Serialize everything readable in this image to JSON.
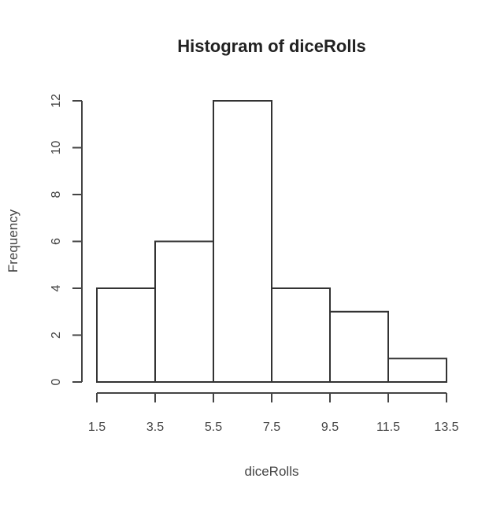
{
  "chart_data": {
    "type": "bar",
    "title": "Histogram of diceRolls",
    "xlabel": "diceRolls",
    "ylabel": "Frequency",
    "bins": [
      {
        "start": 1.5,
        "end": 3.5,
        "count": 4
      },
      {
        "start": 3.5,
        "end": 5.5,
        "count": 6
      },
      {
        "start": 5.5,
        "end": 7.5,
        "count": 12
      },
      {
        "start": 7.5,
        "end": 9.5,
        "count": 4
      },
      {
        "start": 9.5,
        "end": 11.5,
        "count": 3
      },
      {
        "start": 11.5,
        "end": 13.5,
        "count": 1
      }
    ],
    "xticks": [
      "1.5",
      "3.5",
      "5.5",
      "7.5",
      "9.5",
      "11.5",
      "13.5"
    ],
    "yticks": [
      "0",
      "2",
      "4",
      "6",
      "8",
      "10",
      "12"
    ],
    "xlim": [
      1.5,
      13.5
    ],
    "ylim": [
      0,
      12
    ],
    "grid": false,
    "legend": "none"
  }
}
